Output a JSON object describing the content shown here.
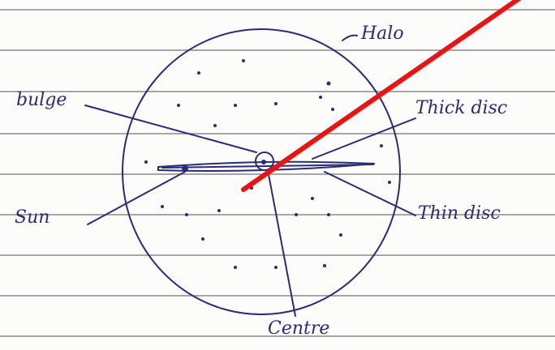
{
  "labels": [
    "Halo",
    "bulge",
    "Thick disc",
    "Sun",
    "Thin disc",
    "Centre"
  ]
}
